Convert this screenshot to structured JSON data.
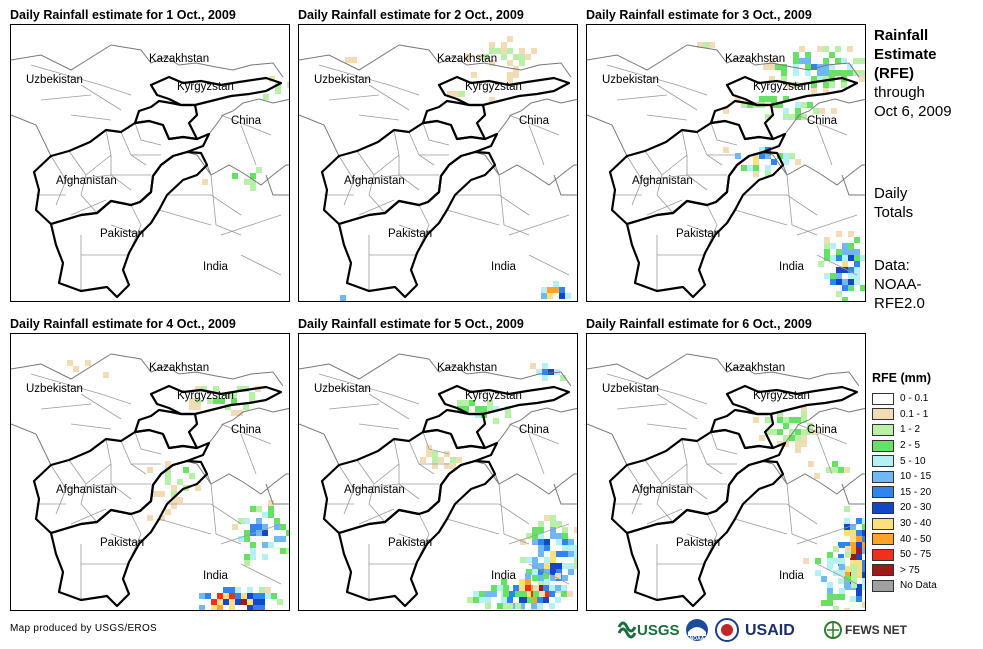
{
  "panels": [
    {
      "title": "Daily Rainfall estimate for 1 Oct., 2009",
      "day": 1
    },
    {
      "title": "Daily Rainfall estimate for 2 Oct., 2009",
      "day": 2
    },
    {
      "title": "Daily Rainfall estimate for 3 Oct., 2009",
      "day": 3
    },
    {
      "title": "Daily Rainfall estimate for 4 Oct., 2009",
      "day": 4
    },
    {
      "title": "Daily Rainfall estimate for 5 Oct., 2009",
      "day": 5
    },
    {
      "title": "Daily Rainfall estimate for 6 Oct., 2009",
      "day": 6
    }
  ],
  "country_labels": {
    "kazakhstan": "Kazakhstan",
    "uzbekistan": "Uzbekistan",
    "kyrgyzstan": "Kyrgyzstan",
    "china": "China",
    "afghanistan": "Afghanistan",
    "pakistan": "Pakistan",
    "india": "India"
  },
  "sidebar": {
    "title_line1": "Rainfall",
    "title_line2": "Estimate",
    "title_line3": "(RFE)",
    "through": "through",
    "date": "Oct 6, 2009",
    "daily1": "Daily",
    "daily2": "Totals",
    "data1": "Data:",
    "data2": "NOAA-",
    "data3": "RFE2.0"
  },
  "legend": {
    "title": "RFE (mm)",
    "items": [
      {
        "label": "0 - 0.1",
        "color": "#ffffff"
      },
      {
        "label": "0.1 - 1",
        "color": "#f1dcb6"
      },
      {
        "label": "1 - 2",
        "color": "#b8f0a8"
      },
      {
        "label": "2 - 5",
        "color": "#68e066"
      },
      {
        "label": "5 - 10",
        "color": "#b4f0f4"
      },
      {
        "label": "10 - 15",
        "color": "#6fb8f4"
      },
      {
        "label": "15 - 20",
        "color": "#2f84ee"
      },
      {
        "label": "20 - 30",
        "color": "#1248c8"
      },
      {
        "label": "30 - 40",
        "color": "#fbe07c"
      },
      {
        "label": "40 - 50",
        "color": "#fba428"
      },
      {
        "label": "50 - 75",
        "color": "#f0301c"
      },
      {
        "label": "> 75",
        "color": "#a01818"
      },
      {
        "label": "No Data",
        "color": "#a0a0a0"
      }
    ]
  },
  "footer": {
    "credit": "Map produced by USGS/EROS",
    "logos": [
      "USGS",
      "NOAA",
      "USAID",
      "FEWS NET"
    ]
  }
}
